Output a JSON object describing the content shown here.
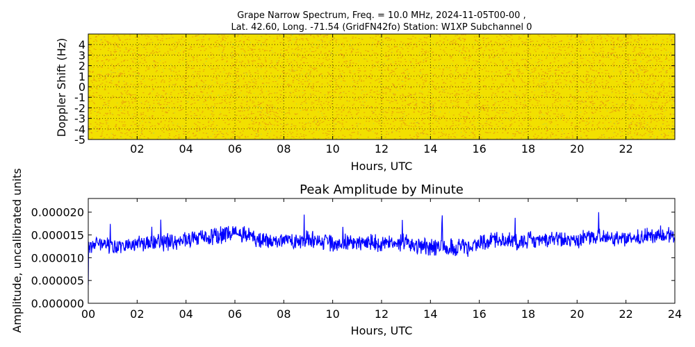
{
  "chart_data": [
    {
      "type": "heatmap",
      "title_line1": "Grape Narrow Spectrum, Freq. = 10.0 MHz, 2024-11-05T00-00 ,",
      "title_line2": "Lat.  42.60, Long. -71.54 (GridFN42fo) Station: W1XP Subchannel 0",
      "xlabel": "Hours, UTC",
      "ylabel": "Doppler Shift (Hz)",
      "xlim": [
        0,
        24
      ],
      "ylim": [
        -5,
        5
      ],
      "x_tick_labels": [
        "02",
        "04",
        "06",
        "08",
        "10",
        "12",
        "14",
        "16",
        "18",
        "20",
        "22"
      ],
      "x_tick_values": [
        2,
        4,
        6,
        8,
        10,
        12,
        14,
        16,
        18,
        20,
        22
      ],
      "y_tick_labels": [
        "4",
        "3",
        "2",
        "1",
        "0",
        "-1",
        "-2",
        "-3",
        "-4",
        "-5"
      ],
      "y_tick_values": [
        4,
        3,
        2,
        1,
        0,
        -1,
        -2,
        -3,
        -4,
        -5
      ],
      "colors": {
        "base": "#f2e000",
        "hot": "#e07018",
        "cool": "#9ad06a"
      },
      "grid": "dotted"
    },
    {
      "type": "line",
      "title": "Peak Amplitude by Minute",
      "xlabel": "Hours, UTC",
      "ylabel": "Amplitude, uncalibrated units",
      "xlim": [
        0,
        24
      ],
      "ylim": [
        0,
        2.3e-05
      ],
      "x_tick_labels": [
        "00",
        "02",
        "04",
        "06",
        "08",
        "10",
        "12",
        "14",
        "16",
        "18",
        "20",
        "22",
        "24"
      ],
      "x_tick_values": [
        0,
        2,
        4,
        6,
        8,
        10,
        12,
        14,
        16,
        18,
        20,
        22,
        24
      ],
      "y_tick_labels": [
        "0.000000",
        "0.000005",
        "0.000010",
        "0.000015",
        "0.000020"
      ],
      "y_tick_values": [
        0,
        5e-06,
        1e-05,
        1.5e-05,
        2e-05
      ],
      "color": "#0000ff",
      "grid": "off",
      "series": [
        {
          "x": [
            0,
            0.5,
            1,
            1.5,
            2,
            2.5,
            3,
            3.5,
            4,
            4.5,
            5,
            5.5,
            6,
            6.5,
            7,
            7.5,
            8,
            8.5,
            9,
            9.5,
            10,
            10.5,
            11,
            11.5,
            12,
            12.5,
            13,
            13.5,
            14,
            14.5,
            15,
            15.5,
            16,
            16.5,
            17,
            17.5,
            18,
            18.5,
            19,
            19.5,
            20,
            20.5,
            21,
            21.5,
            22,
            22.5,
            23,
            23.5,
            24
          ],
          "values": [
            1.25e-05,
            1.28e-05,
            1.22e-05,
            1.27e-05,
            1.3e-05,
            1.31e-05,
            1.33e-05,
            1.35e-05,
            1.4e-05,
            1.42e-05,
            1.45e-05,
            1.5e-05,
            1.53e-05,
            1.51e-05,
            1.4e-05,
            1.35e-05,
            1.38e-05,
            1.35e-05,
            1.4e-05,
            1.36e-05,
            1.34e-05,
            1.32e-05,
            1.35e-05,
            1.33e-05,
            1.28e-05,
            1.35e-05,
            1.32e-05,
            1.25e-05,
            1.22e-05,
            1.28e-05,
            1.23e-05,
            1.22e-05,
            1.33e-05,
            1.38e-05,
            1.4e-05,
            1.36e-05,
            1.38e-05,
            1.37e-05,
            1.42e-05,
            1.38e-05,
            1.4e-05,
            1.45e-05,
            1.48e-05,
            1.42e-05,
            1.38e-05,
            1.44e-05,
            1.48e-05,
            1.55e-05,
            1.48e-05
          ]
        }
      ]
    }
  ]
}
